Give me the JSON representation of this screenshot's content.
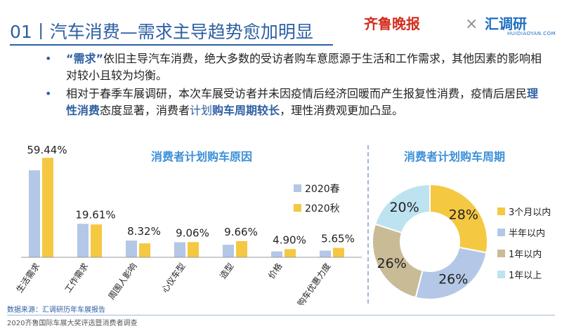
{
  "header": {
    "title": "01丨汽车消费—需求主导趋势愈加明显",
    "logo_left": "齐鲁晚报",
    "logo_sep": "×",
    "logo_right": "汇调研",
    "logo_right_sub": "HUIDIAOYAN.COM"
  },
  "bullets": [
    {
      "dot": "•",
      "parts": [
        {
          "text": "“需求”",
          "style": "hl"
        },
        {
          "text": "依旧主导汽车消费，绝大多数的受访者购车意愿源于生活和工作需求，其他因素的影响相对较小且较为均衡。",
          "style": ""
        }
      ]
    },
    {
      "dot": "•",
      "parts": [
        {
          "text": "相对于春季车展调研，本次车展受访者并未因疫情后经济回暖而产生报复性消费，疫情后居民",
          "style": ""
        },
        {
          "text": "理性消费",
          "style": "hl"
        },
        {
          "text": "态度显著，消费者",
          "style": ""
        },
        {
          "text": "计划",
          "style": "hl-plain"
        },
        {
          "text": "购车周期较长",
          "style": "hl"
        },
        {
          "text": "，理性消费观更加凸显。",
          "style": ""
        }
      ]
    }
  ],
  "chart_data": [
    {
      "type": "bar",
      "title": "消费者计划购车原因",
      "categories": [
        "生活需求",
        "工作需求",
        "周围人影响",
        "心仪车型",
        "造型",
        "价格",
        "购车优惠力度"
      ],
      "series": [
        {
          "name": "2020春",
          "color": "#b4c7e7",
          "values": [
            52,
            20,
            10,
            9,
            7.5,
            3.5,
            4
          ]
        },
        {
          "name": "2020秋",
          "color": "#f5c842",
          "values": [
            59.44,
            19.61,
            8.32,
            9.06,
            9.66,
            4.9,
            5.65
          ]
        }
      ],
      "data_labels": [
        "59.44%",
        "19.61%",
        "8.32%",
        "9.06%",
        "9.66%",
        "4.90%",
        "5.65%"
      ],
      "ylim": [
        0,
        62
      ],
      "legend": "right"
    },
    {
      "type": "pie",
      "title": "消费者计划购车周期",
      "slices": [
        {
          "label": "3个月以内",
          "value": 28,
          "text": "28%",
          "color": "#f5c842"
        },
        {
          "label": "半年以内",
          "value": 26,
          "text": "26%",
          "color": "#b4c7e7"
        },
        {
          "label": "1年以内",
          "value": 26,
          "text": "26%",
          "color": "#c9bb96"
        },
        {
          "label": "1年以上",
          "value": 20,
          "text": "20%",
          "color": "#bde3f0"
        }
      ],
      "legend": "right"
    }
  ],
  "footer": {
    "source": "数据来源：汇调研历年车展报告",
    "survey": "2020齐鲁国际车展大奖评选暨消费者调查"
  }
}
